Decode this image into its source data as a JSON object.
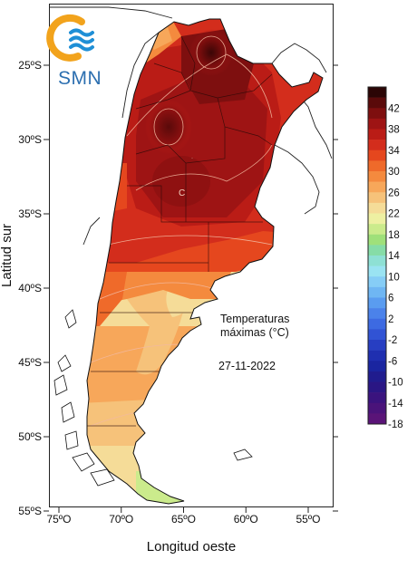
{
  "logo": {
    "text": "SMN",
    "ring_color": "#f2a31c",
    "wave_color": "#1f8fd6",
    "text_color": "#2c6fb0"
  },
  "map": {
    "annotation": {
      "line1": "Temperaturas",
      "line2": "máximas (°C)",
      "date": "27-11-2022"
    }
  },
  "axes": {
    "x_label": "Longitud oeste",
    "y_label": "Latitud sur",
    "x_ticks": [
      {
        "lon": 75,
        "label": "75ºO"
      },
      {
        "lon": 70,
        "label": "70ºO"
      },
      {
        "lon": 65,
        "label": "65ºO"
      },
      {
        "lon": 60,
        "label": "60ºO"
      },
      {
        "lon": 55,
        "label": "55ºO"
      }
    ],
    "y_ticks": [
      {
        "lat": 25,
        "label": "25ºS"
      },
      {
        "lat": 30,
        "label": "30ºS"
      },
      {
        "lat": 35,
        "label": "35ºS"
      },
      {
        "lat": 40,
        "label": "40ºS"
      },
      {
        "lat": 45,
        "label": "45ºS"
      },
      {
        "lat": 50,
        "label": "50ºS"
      },
      {
        "lat": 55,
        "label": "55ºS"
      }
    ]
  },
  "legend": {
    "unit": "°C",
    "bands": [
      {
        "label": "",
        "color": "#2b0505"
      },
      {
        "label": "42",
        "color": "#5a0a0a"
      },
      {
        "label": "",
        "color": "#7e0f0f"
      },
      {
        "label": "38",
        "color": "#9e1414"
      },
      {
        "label": "",
        "color": "#ba1c16"
      },
      {
        "label": "34",
        "color": "#d32d1c"
      },
      {
        "label": "",
        "color": "#e5471e"
      },
      {
        "label": "30",
        "color": "#ef6a2a"
      },
      {
        "label": "",
        "color": "#f48a3e"
      },
      {
        "label": "26",
        "color": "#f7a75a"
      },
      {
        "label": "",
        "color": "#f6c27a"
      },
      {
        "label": "22",
        "color": "#f5dc98"
      },
      {
        "label": "",
        "color": "#eef0a2"
      },
      {
        "label": "18",
        "color": "#cbeb8c"
      },
      {
        "label": "",
        "color": "#9fe07a"
      },
      {
        "label": "14",
        "color": "#86dca7"
      },
      {
        "label": "",
        "color": "#8ee0d4"
      },
      {
        "label": "10",
        "color": "#9ae3f2"
      },
      {
        "label": "",
        "color": "#86cdf6"
      },
      {
        "label": "6",
        "color": "#6fb6f3"
      },
      {
        "label": "",
        "color": "#5a9cf0"
      },
      {
        "label": "2",
        "color": "#4b82ea"
      },
      {
        "label": "",
        "color": "#3d6ae2"
      },
      {
        "label": "-2",
        "color": "#3153d4"
      },
      {
        "label": "",
        "color": "#273ec2"
      },
      {
        "label": "-6",
        "color": "#1f2fb0"
      },
      {
        "label": "",
        "color": "#1a25a0"
      },
      {
        "label": "-10",
        "color": "#201c8e"
      },
      {
        "label": "",
        "color": "#2a1684"
      },
      {
        "label": "-14",
        "color": "#3a137e"
      },
      {
        "label": "",
        "color": "#4a137a"
      },
      {
        "label": "-18",
        "color": "#5a1478"
      }
    ]
  },
  "hotspot_markers": [
    "C",
    "C"
  ]
}
